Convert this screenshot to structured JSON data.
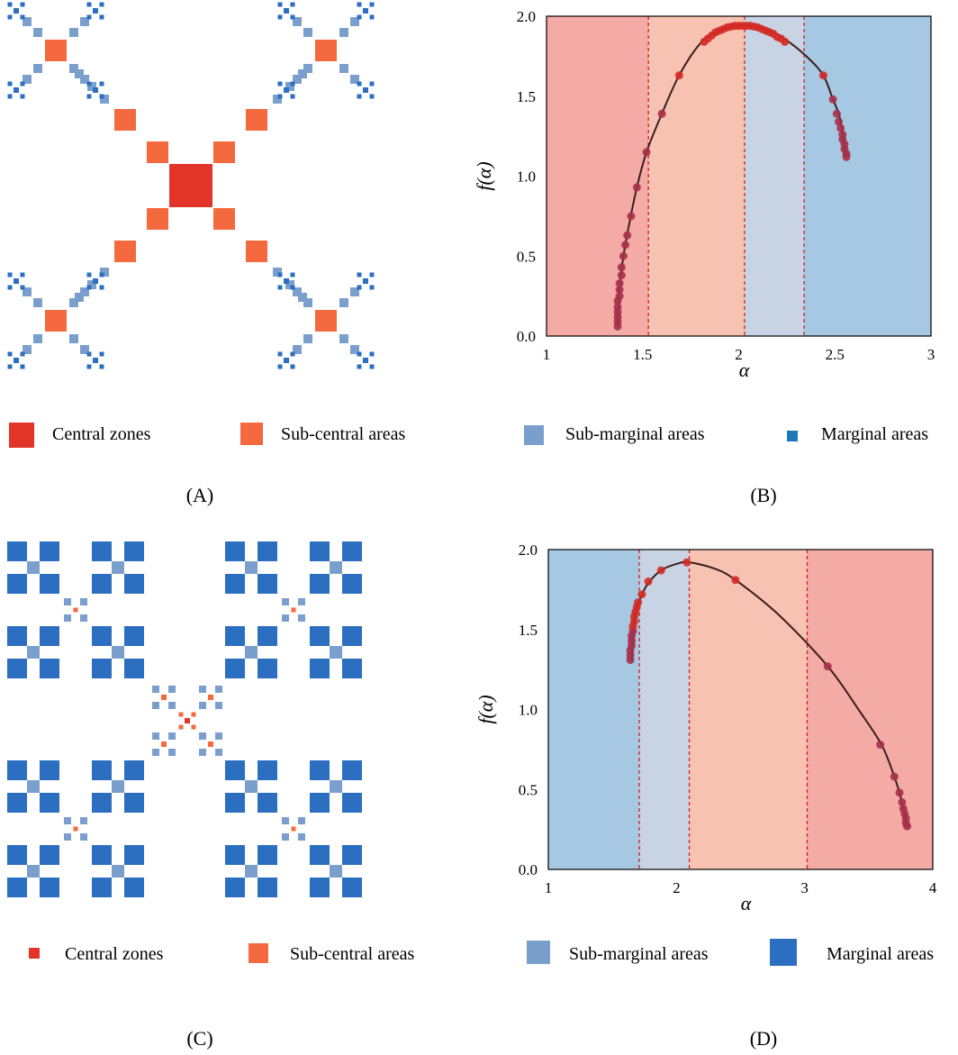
{
  "colors": {
    "central": "#e3342a",
    "sub_central": "#f4693e",
    "sub_marginal": "#7b9fcd",
    "marginal": "#2c6fc1",
    "marginal_legend_small": "#1f78b8",
    "band_central": "#f4aaa5",
    "band_sub_central": "#f8c2b2",
    "band_sub_marginal": "#c8d3e4",
    "band_marginal": "#a7c8e2",
    "curve": "#3a1e1e",
    "dashed": "#cc2222"
  },
  "legend_labels": {
    "central": "Central zones",
    "sub_central": "Sub-central areas",
    "sub_marginal": "Sub-marginal areas",
    "marginal": "Marginal areas"
  },
  "panel_labels": {
    "A": "(A)",
    "B": "(B)",
    "C": "(C)",
    "D": "(D)"
  },
  "chart_data": [
    {
      "panel": "B",
      "type": "scatter",
      "xlabel": "α",
      "ylabel": "f(α)",
      "xlim": [
        1,
        3
      ],
      "ylim": [
        0,
        2
      ],
      "xticks": [
        1,
        1.5,
        2,
        2.5,
        3
      ],
      "xtick_labels": [
        "1",
        "1.5",
        "2",
        "2.5",
        "3"
      ],
      "yticks": [
        0,
        0.5,
        1.0,
        1.5,
        2.0
      ],
      "ytick_labels": [
        "0.0",
        "0.5",
        "1.0",
        "1.5",
        "2.0"
      ],
      "bands": [
        {
          "from": 1,
          "to": 1.53,
          "zone": "central"
        },
        {
          "from": 1.53,
          "to": 2.03,
          "zone": "sub_central"
        },
        {
          "from": 2.03,
          "to": 2.34,
          "zone": "sub_marginal"
        },
        {
          "from": 2.34,
          "to": 3,
          "zone": "marginal"
        }
      ],
      "dividers": [
        1.53,
        2.03,
        2.34
      ],
      "curve": [
        [
          1.37,
          0.06
        ],
        [
          1.38,
          0.3
        ],
        [
          1.4,
          0.5
        ],
        [
          1.43,
          0.7
        ],
        [
          1.47,
          0.93
        ],
        [
          1.52,
          1.15
        ],
        [
          1.6,
          1.39
        ],
        [
          1.69,
          1.63
        ],
        [
          1.8,
          1.83
        ],
        [
          1.9,
          1.91
        ],
        [
          2.0,
          1.94
        ],
        [
          2.08,
          1.94
        ],
        [
          2.16,
          1.91
        ],
        [
          2.26,
          1.84
        ],
        [
          2.36,
          1.74
        ],
        [
          2.44,
          1.63
        ],
        [
          2.49,
          1.48
        ],
        [
          2.52,
          1.39
        ],
        [
          2.54,
          1.28
        ],
        [
          2.55,
          1.18
        ],
        [
          2.56,
          1.12
        ]
      ],
      "points": [
        [
          1.37,
          0.06
        ],
        [
          1.37,
          0.09
        ],
        [
          1.37,
          0.12
        ],
        [
          1.37,
          0.15
        ],
        [
          1.37,
          0.18
        ],
        [
          1.37,
          0.22
        ],
        [
          1.38,
          0.25
        ],
        [
          1.38,
          0.29
        ],
        [
          1.38,
          0.33
        ],
        [
          1.39,
          0.38
        ],
        [
          1.39,
          0.43
        ],
        [
          1.4,
          0.5
        ],
        [
          1.41,
          0.57
        ],
        [
          1.42,
          0.63
        ],
        [
          1.44,
          0.75
        ],
        [
          1.47,
          0.93
        ],
        [
          1.52,
          1.15
        ],
        [
          1.6,
          1.39
        ],
        [
          1.69,
          1.63
        ],
        [
          1.82,
          1.84
        ],
        [
          1.84,
          1.86
        ],
        [
          1.86,
          1.88
        ],
        [
          1.88,
          1.9
        ],
        [
          1.9,
          1.91
        ],
        [
          1.92,
          1.92
        ],
        [
          1.94,
          1.93
        ],
        [
          1.96,
          1.935
        ],
        [
          1.98,
          1.94
        ],
        [
          2.0,
          1.94
        ],
        [
          2.02,
          1.94
        ],
        [
          2.04,
          1.94
        ],
        [
          2.06,
          1.94
        ],
        [
          2.08,
          1.935
        ],
        [
          2.1,
          1.93
        ],
        [
          2.12,
          1.92
        ],
        [
          2.14,
          1.91
        ],
        [
          2.16,
          1.9
        ],
        [
          2.18,
          1.89
        ],
        [
          2.2,
          1.87
        ],
        [
          2.22,
          1.86
        ],
        [
          2.24,
          1.84
        ],
        [
          2.44,
          1.63
        ],
        [
          2.49,
          1.48
        ],
        [
          2.51,
          1.39
        ],
        [
          2.52,
          1.34
        ],
        [
          2.53,
          1.3
        ],
        [
          2.54,
          1.26
        ],
        [
          2.54,
          1.23
        ],
        [
          2.55,
          1.2
        ],
        [
          2.55,
          1.17
        ],
        [
          2.56,
          1.14
        ],
        [
          2.56,
          1.12
        ]
      ]
    },
    {
      "panel": "D",
      "type": "scatter",
      "xlabel": "α",
      "ylabel": "f(α)",
      "xlim": [
        1,
        4
      ],
      "ylim": [
        0,
        2
      ],
      "xticks": [
        1,
        2,
        3,
        4
      ],
      "xtick_labels": [
        "1",
        "2",
        "3",
        "4"
      ],
      "yticks": [
        0,
        0.5,
        1.0,
        1.5,
        2.0
      ],
      "ytick_labels": [
        "0.0",
        "0.5",
        "1.0",
        "1.5",
        "2.0"
      ],
      "bands": [
        {
          "from": 1,
          "to": 1.71,
          "zone": "marginal"
        },
        {
          "from": 1.71,
          "to": 2.1,
          "zone": "sub_marginal"
        },
        {
          "from": 2.1,
          "to": 3.02,
          "zone": "sub_central"
        },
        {
          "from": 3.02,
          "to": 4,
          "zone": "central"
        }
      ],
      "dividers": [
        1.71,
        2.1,
        3.02
      ],
      "curve": [
        [
          1.65,
          1.3
        ],
        [
          1.66,
          1.45
        ],
        [
          1.68,
          1.6
        ],
        [
          1.72,
          1.7
        ],
        [
          1.78,
          1.79
        ],
        [
          1.88,
          1.87
        ],
        [
          2.0,
          1.91
        ],
        [
          2.1,
          1.92
        ],
        [
          2.3,
          1.88
        ],
        [
          2.46,
          1.81
        ],
        [
          2.8,
          1.59
        ],
        [
          3.18,
          1.27
        ],
        [
          3.42,
          1.0
        ],
        [
          3.6,
          0.78
        ],
        [
          3.7,
          0.58
        ],
        [
          3.75,
          0.45
        ],
        [
          3.78,
          0.35
        ],
        [
          3.8,
          0.27
        ]
      ],
      "points": [
        [
          1.64,
          1.31
        ],
        [
          1.64,
          1.34
        ],
        [
          1.64,
          1.37
        ],
        [
          1.65,
          1.4
        ],
        [
          1.65,
          1.43
        ],
        [
          1.65,
          1.46
        ],
        [
          1.66,
          1.49
        ],
        [
          1.66,
          1.52
        ],
        [
          1.67,
          1.55
        ],
        [
          1.67,
          1.58
        ],
        [
          1.68,
          1.61
        ],
        [
          1.69,
          1.64
        ],
        [
          1.7,
          1.67
        ],
        [
          1.73,
          1.72
        ],
        [
          1.78,
          1.8
        ],
        [
          1.88,
          1.87
        ],
        [
          2.08,
          1.92
        ],
        [
          2.46,
          1.81
        ],
        [
          3.18,
          1.27
        ],
        [
          3.59,
          0.78
        ],
        [
          3.7,
          0.58
        ],
        [
          3.74,
          0.48
        ],
        [
          3.76,
          0.42
        ],
        [
          3.77,
          0.38
        ],
        [
          3.78,
          0.35
        ],
        [
          3.79,
          0.32
        ],
        [
          3.79,
          0.29
        ],
        [
          3.8,
          0.27
        ]
      ]
    }
  ]
}
